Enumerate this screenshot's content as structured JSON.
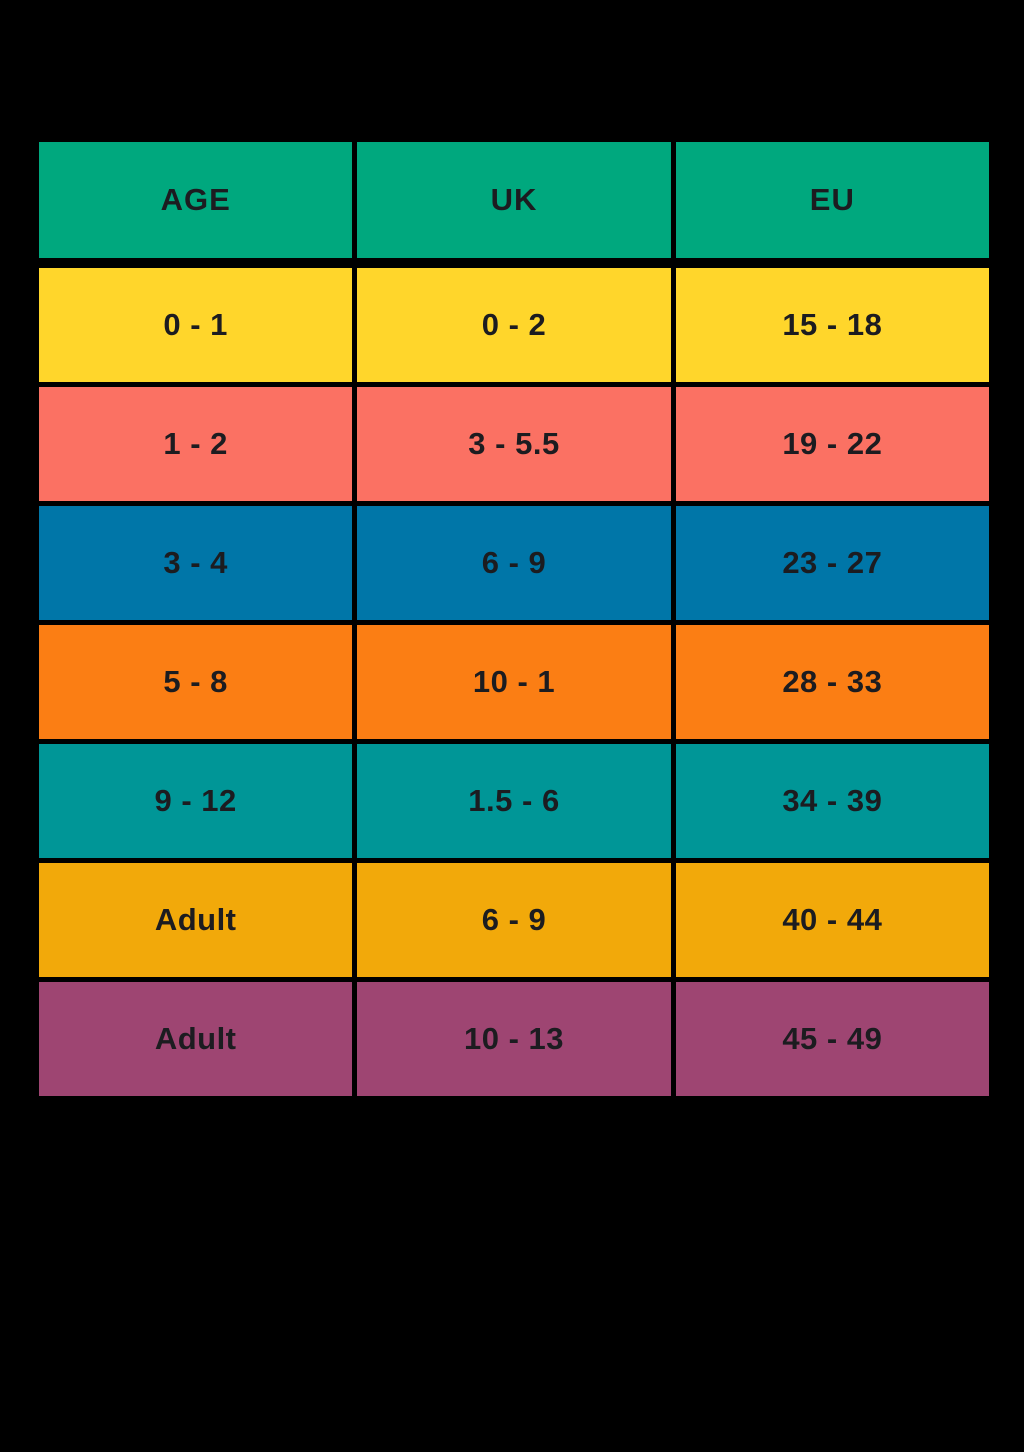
{
  "page": {
    "background_color": "#000000",
    "text_color": "#1c1c20"
  },
  "table": {
    "title_semantic": "age-to-shoe-size-conversion-chart",
    "header_color": "#00A87E",
    "headers": {
      "age": "AGE",
      "uk": "UK",
      "eu": "EU"
    },
    "rows": [
      {
        "age": "0 - 1",
        "uk": "0 - 2",
        "eu": "15 - 18",
        "color": "#FFD62B"
      },
      {
        "age": "1 - 2",
        "uk": "3 - 5.5",
        "eu": "19 - 22",
        "color": "#FB7163"
      },
      {
        "age": "3 - 4",
        "uk": "6 - 9",
        "eu": "23 - 27",
        "color": "#0076A8"
      },
      {
        "age": "5 - 8",
        "uk": "10 - 1",
        "eu": "28 - 33",
        "color": "#FB7E14"
      },
      {
        "age": "9 - 12",
        "uk": "1.5 - 6",
        "eu": "34 - 39",
        "color": "#009697"
      },
      {
        "age": "Adult",
        "uk": "6 - 9",
        "eu": "40 - 44",
        "color": "#F2A90A"
      },
      {
        "age": "Adult",
        "uk": "10 - 13",
        "eu": "45 - 49",
        "color": "#9E4572"
      }
    ]
  }
}
